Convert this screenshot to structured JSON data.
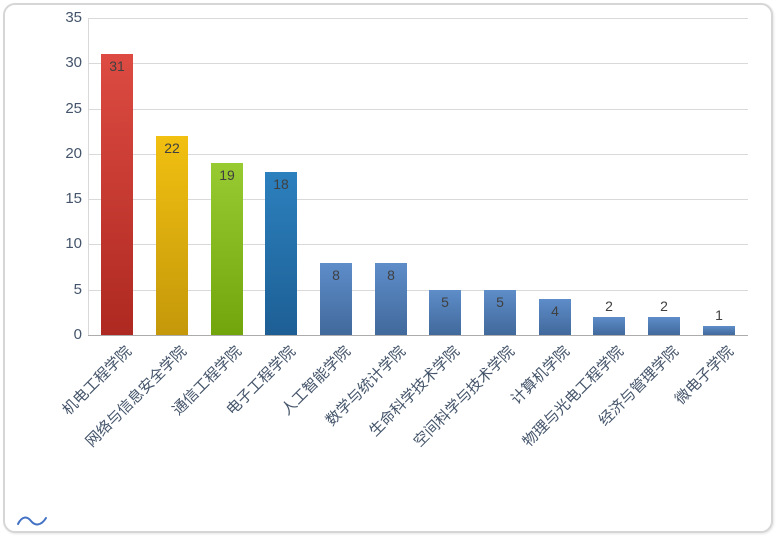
{
  "chart_data": {
    "type": "bar",
    "title": "",
    "xlabel": "",
    "ylabel": "",
    "categories": [
      "机电工程学院",
      "网络与信息安全学院",
      "通信工程学院",
      "电子工程学院",
      "人工智能学院",
      "数学与统计学院",
      "生命科学技术学院",
      "空间科学与技术学院",
      "计算机学院",
      "物理与光电工程学院",
      "经济与管理学院",
      "微电子学院"
    ],
    "values": [
      31,
      22,
      19,
      18,
      8,
      8,
      5,
      5,
      4,
      2,
      2,
      1
    ],
    "ylim": [
      0,
      35
    ],
    "ytick_step": 5,
    "yticks": [
      0,
      5,
      10,
      15,
      20,
      25,
      30,
      35
    ],
    "grid": "horizontal",
    "legend": "none",
    "data_labels": "inside-end",
    "series_color_keys": [
      "red",
      "gold",
      "green",
      "blue_dark",
      "blue",
      "blue",
      "blue",
      "blue",
      "blue",
      "blue",
      "blue",
      "blue"
    ],
    "palette": {
      "red": [
        "#DD4B42",
        "#AE2921"
      ],
      "gold": [
        "#F2C011",
        "#C4980A"
      ],
      "green": [
        "#98CA32",
        "#72A40C"
      ],
      "blue_dark": [
        "#2C80BE",
        "#1D5F95"
      ],
      "blue": [
        "#5E8DC9",
        "#41699C"
      ]
    },
    "grid_color": "#D9D9D9",
    "axis_line_color": "#ACACAC",
    "tick_label_color": "#44546A",
    "category_label_color": "#44546A",
    "data_label_color": "#404040",
    "frame_border_color": "#D6D6D6",
    "corner_mark_color": "#4472C4"
  }
}
